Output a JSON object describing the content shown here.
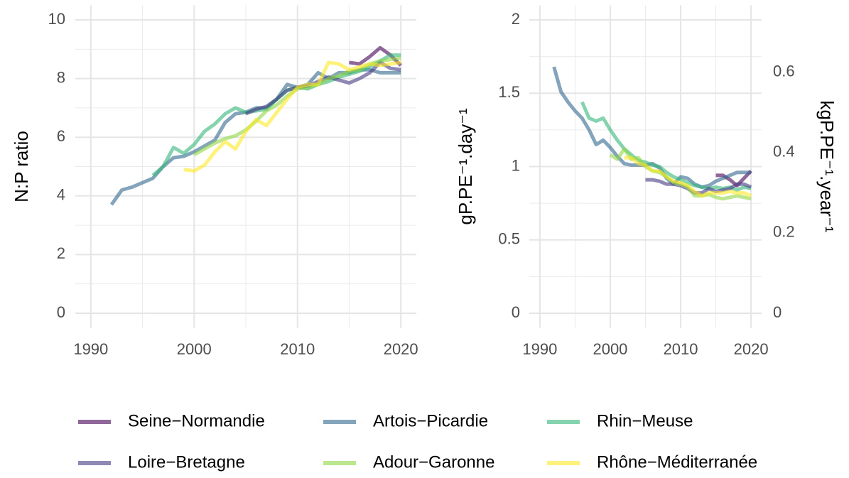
{
  "legend": {
    "entries": [
      {
        "name": "Seine−Normandie",
        "color": "#440154"
      },
      {
        "name": "Artois−Picardie",
        "color": "#31688e"
      },
      {
        "name": "Rhin−Meuse",
        "color": "#35b779"
      },
      {
        "name": "Loire−Bretagne",
        "color": "#443a83"
      },
      {
        "name": "Adour−Garonne",
        "color": "#8fd744"
      },
      {
        "name": "Rhône−Méditerranée",
        "color": "#fde725"
      }
    ]
  },
  "chart_data": [
    {
      "type": "line",
      "y_label": "N:P ratio",
      "x": [
        1992,
        1993,
        1994,
        1995,
        1996,
        1997,
        1998,
        1999,
        2000,
        2001,
        2002,
        2003,
        2004,
        2005,
        2006,
        2007,
        2008,
        2009,
        2010,
        2011,
        2012,
        2013,
        2014,
        2015,
        2016,
        2017,
        2018,
        2019,
        2020
      ],
      "series": [
        {
          "values": [
            null,
            null,
            null,
            null,
            null,
            null,
            null,
            null,
            null,
            null,
            null,
            null,
            null,
            null,
            null,
            null,
            null,
            null,
            null,
            null,
            null,
            null,
            null,
            8.55,
            8.5,
            8.75,
            9.05,
            8.8,
            8.45
          ]
        },
        {
          "values": [
            3.7,
            4.2,
            4.3,
            4.45,
            4.6,
            5.0,
            5.3,
            5.35,
            5.5,
            5.7,
            5.9,
            6.5,
            6.8,
            6.85,
            7.0,
            7.0,
            7.3,
            7.8,
            7.7,
            7.8,
            8.2,
            8.0,
            8.2,
            8.2,
            8.3,
            8.3,
            8.2,
            8.2,
            8.2
          ]
        },
        {
          "values": [
            null,
            null,
            null,
            null,
            4.7,
            5.0,
            5.65,
            5.45,
            5.75,
            6.2,
            6.45,
            6.8,
            7.0,
            6.85,
            6.9,
            6.95,
            7.3,
            7.6,
            7.7,
            7.65,
            7.8,
            7.9,
            8.05,
            8.15,
            8.25,
            8.4,
            8.6,
            8.8,
            8.8
          ]
        },
        {
          "values": [
            null,
            null,
            null,
            null,
            null,
            null,
            null,
            null,
            null,
            null,
            null,
            null,
            null,
            6.8,
            6.95,
            7.05,
            7.3,
            7.6,
            7.7,
            7.75,
            7.9,
            8.05,
            7.95,
            7.85,
            8.0,
            8.2,
            8.55,
            8.35,
            8.3
          ]
        },
        {
          "values": [
            null,
            null,
            null,
            null,
            null,
            null,
            null,
            null,
            5.4,
            5.6,
            5.8,
            5.95,
            6.05,
            6.25,
            6.55,
            6.9,
            7.1,
            7.4,
            7.65,
            7.7,
            7.8,
            8.0,
            8.1,
            8.25,
            8.3,
            8.5,
            8.6,
            8.65,
            8.7
          ]
        },
        {
          "values": [
            null,
            null,
            null,
            null,
            null,
            null,
            null,
            4.9,
            4.85,
            5.05,
            5.5,
            5.85,
            5.6,
            6.2,
            6.6,
            6.4,
            6.85,
            7.3,
            7.7,
            7.8,
            7.8,
            8.55,
            8.5,
            8.3,
            8.4,
            8.5,
            8.45,
            8.5,
            8.55
          ]
        }
      ],
      "xlim": [
        1988.5,
        2021.5
      ],
      "xticks": [
        1990,
        2000,
        2010,
        2020
      ],
      "ylim": [
        -0.5,
        10.5
      ],
      "yticks": [
        0,
        2,
        4,
        6,
        8,
        10
      ],
      "grid": true
    },
    {
      "type": "line",
      "y_label": "gP.PE⁻¹.day⁻¹",
      "y2_label": "kgP.PE⁻¹.year⁻¹",
      "x": [
        1992,
        1993,
        1994,
        1995,
        1996,
        1997,
        1998,
        1999,
        2000,
        2001,
        2002,
        2003,
        2004,
        2005,
        2006,
        2007,
        2008,
        2009,
        2010,
        2011,
        2012,
        2013,
        2014,
        2015,
        2016,
        2017,
        2018,
        2019,
        2020
      ],
      "series": [
        {
          "values": [
            null,
            null,
            null,
            null,
            null,
            null,
            null,
            null,
            null,
            null,
            null,
            null,
            null,
            null,
            null,
            null,
            null,
            null,
            null,
            null,
            null,
            null,
            null,
            0.94,
            0.94,
            0.91,
            0.87,
            0.92,
            0.97
          ]
        },
        {
          "values": [
            1.68,
            1.51,
            1.44,
            1.38,
            1.33,
            1.25,
            1.15,
            1.18,
            1.13,
            1.07,
            1.02,
            1.01,
            1.01,
            1.01,
            1.02,
            0.99,
            0.92,
            0.88,
            0.93,
            0.92,
            0.88,
            0.86,
            0.87,
            0.9,
            0.92,
            0.94,
            0.96,
            0.96,
            0.96
          ]
        },
        {
          "values": [
            null,
            null,
            null,
            null,
            1.44,
            1.33,
            1.31,
            1.33,
            1.25,
            1.18,
            1.12,
            1.08,
            1.04,
            1.03,
            1.01,
            1.0,
            0.96,
            0.93,
            0.91,
            0.89,
            0.87,
            0.86,
            0.85,
            0.86,
            0.85,
            0.86,
            0.84,
            0.86,
            0.85
          ]
        },
        {
          "values": [
            null,
            null,
            null,
            null,
            null,
            null,
            null,
            null,
            null,
            null,
            null,
            null,
            null,
            0.91,
            0.91,
            0.9,
            0.88,
            0.88,
            0.87,
            0.85,
            0.82,
            0.82,
            0.85,
            0.83,
            0.84,
            0.85,
            0.88,
            0.88,
            0.86
          ]
        },
        {
          "values": [
            null,
            null,
            null,
            null,
            null,
            null,
            null,
            null,
            1.08,
            1.05,
            1.12,
            1.05,
            1.06,
            1.0,
            0.97,
            0.96,
            0.93,
            0.89,
            0.88,
            0.86,
            0.8,
            0.8,
            0.81,
            0.79,
            0.78,
            0.79,
            0.8,
            0.79,
            0.78
          ]
        },
        {
          "values": [
            null,
            null,
            null,
            null,
            null,
            null,
            null,
            null,
            null,
            null,
            1.06,
            1.06,
            1.02,
            1.01,
            0.97,
            0.97,
            0.93,
            0.9,
            0.89,
            0.87,
            0.83,
            0.8,
            0.82,
            0.82,
            0.82,
            0.83,
            0.82,
            0.82,
            0.8
          ]
        }
      ],
      "xlim": [
        1988.5,
        2021.5
      ],
      "xticks": [
        1990,
        2000,
        2010,
        2020
      ],
      "ylim": [
        -0.1,
        2.1
      ],
      "yticks": [
        0.0,
        0.5,
        1.0,
        1.5,
        2.0
      ],
      "y2lim": [
        -0.0365,
        0.7665
      ],
      "y2ticks": [
        0.0,
        0.2,
        0.4,
        0.6
      ],
      "grid": true
    }
  ]
}
